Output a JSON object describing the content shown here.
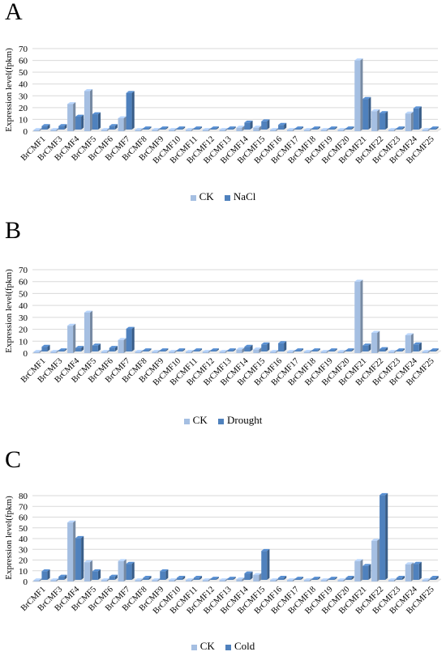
{
  "colors": {
    "ck": "#a5bfe2",
    "treat": "#4f81bd"
  },
  "chart_data": [
    {
      "panel": "A",
      "type": "bar",
      "ylabel": "Expression level(fpkm)",
      "ylim": [
        0,
        70
      ],
      "yticks": [
        0,
        10,
        20,
        30,
        40,
        50,
        60,
        70
      ],
      "grid": true,
      "legend_position": "bottom",
      "categories": [
        "BrCMF1",
        "BrCMF3",
        "BrCMF4",
        "BrCMF5",
        "BrCMF6",
        "BrCMF7",
        "BrCMF8",
        "BrCMF9",
        "BrCMF10",
        "BrCMF11",
        "BrCMF12",
        "BrCMF13",
        "BrCMF14",
        "BrCMF15",
        "BrCMF16",
        "BrCMF17",
        "BrCMF18",
        "BrCMF19",
        "BrCMF20",
        "BrCMF21",
        "BrCMF22",
        "BrCMF23",
        "BrCMF24",
        "BrCMF25"
      ],
      "series": [
        {
          "name": "CK",
          "values": [
            0,
            0,
            23,
            34,
            1,
            11,
            0,
            0,
            0,
            0,
            0,
            0,
            3,
            3,
            1,
            0,
            0,
            0,
            0,
            60,
            17,
            1,
            15,
            0
          ]
        },
        {
          "name": "NaCl",
          "values": [
            3,
            3,
            11,
            13,
            3,
            31,
            1,
            1,
            1,
            1,
            1,
            1,
            6,
            7,
            4,
            1,
            1,
            1,
            1,
            26,
            14,
            1,
            18,
            1
          ]
        }
      ]
    },
    {
      "panel": "B",
      "type": "bar",
      "ylabel": "Expression level(fpkm)",
      "ylim": [
        0,
        70
      ],
      "yticks": [
        0,
        10,
        20,
        30,
        40,
        50,
        60,
        70
      ],
      "grid": true,
      "legend_position": "bottom",
      "categories": [
        "BrCMF1",
        "BrCMF3",
        "BrCMF4",
        "BrCMF5",
        "BrCMF6",
        "BrCMF7",
        "BrCMF8",
        "BrCMF9",
        "BrCMF10",
        "BrCMF11",
        "BrCMF12",
        "BrCMF13",
        "BrCMF14",
        "BrCMF15",
        "BrCMF16",
        "BrCMF17",
        "BrCMF18",
        "BrCMF19",
        "BrCMF20",
        "BrCMF21",
        "BrCMF22",
        "BrCMF23",
        "BrCMF24",
        "BrCMF25"
      ],
      "series": [
        {
          "name": "CK",
          "values": [
            0,
            0,
            23,
            34,
            1,
            11,
            0,
            0,
            0,
            0,
            0,
            0,
            3,
            3,
            1,
            0,
            0,
            0,
            0,
            60,
            17,
            1,
            15,
            0
          ]
        },
        {
          "name": "Drought",
          "values": [
            4,
            1,
            3,
            5,
            3,
            19,
            1,
            1,
            1,
            1,
            1,
            1,
            4,
            6,
            7,
            1,
            1,
            1,
            1,
            5,
            2,
            1,
            6,
            1
          ]
        }
      ]
    },
    {
      "panel": "C",
      "type": "bar",
      "ylabel": "Expression level(fpkm)",
      "ylim": [
        0,
        80
      ],
      "yticks": [
        0,
        10,
        20,
        30,
        40,
        50,
        60,
        70,
        80
      ],
      "grid": true,
      "legend_position": "bottom",
      "categories": [
        "BrCMF1",
        "BrCMF3",
        "BrCMF4",
        "BrCMF5",
        "BrCMF6",
        "BrCMF7",
        "BrCMF8",
        "BrCMF9",
        "BrCMF10",
        "BrCMF11",
        "BrCMF12",
        "BrCMF13",
        "BrCMF14",
        "BrCMF15",
        "BrCMF16",
        "BrCMF17",
        "BrCMF18",
        "BrCMF19",
        "BrCMF20",
        "BrCMF21",
        "BrCMF22",
        "BrCMF23",
        "BrCMF24",
        "BrCMF25"
      ],
      "series": [
        {
          "name": "CK",
          "values": [
            0,
            0,
            55,
            18,
            1,
            19,
            0,
            0,
            0,
            0,
            0,
            0,
            2,
            6,
            1,
            0,
            0,
            0,
            0,
            19,
            38,
            1,
            16,
            0
          ]
        },
        {
          "name": "Cold",
          "values": [
            8,
            3,
            39,
            8,
            3,
            15,
            2,
            8,
            2,
            2,
            1,
            1,
            6,
            27,
            2,
            1,
            1,
            1,
            2,
            13,
            79,
            2,
            15,
            2
          ]
        }
      ]
    }
  ]
}
